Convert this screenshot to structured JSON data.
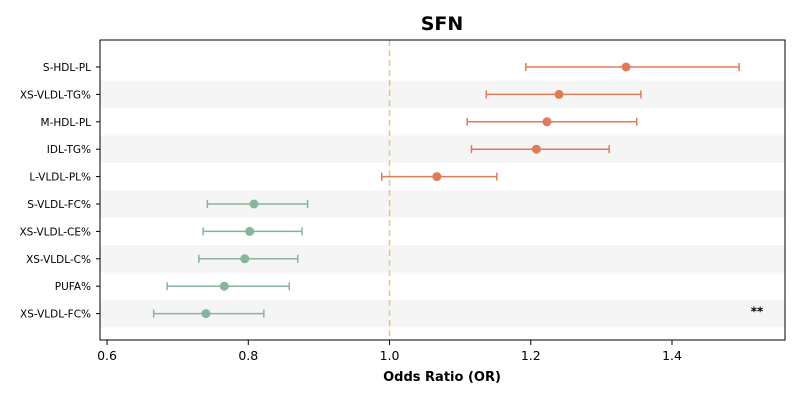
{
  "chart_data": {
    "type": "forest",
    "title": "SFN",
    "xlabel": "Odds Ratio (OR)",
    "xlim": [
      0.59,
      1.56
    ],
    "xticks": [
      0.6,
      0.8,
      1.0,
      1.2,
      1.4
    ],
    "xtick_labels": [
      "0.6",
      "0.8",
      "1.0",
      "1.2",
      "1.4"
    ],
    "reference_line": 1.0,
    "reference_color": "#f2c17a",
    "colors": {
      "increased": "#e07b5a",
      "decreased": "#86b59b",
      "band": "#f5f5f5"
    },
    "rows": [
      {
        "label": "S-HDL-PL",
        "or": 1.335,
        "lower": 1.193,
        "upper": 1.495,
        "group": "increased"
      },
      {
        "label": "XS-VLDL-TG%",
        "or": 1.24,
        "lower": 1.137,
        "upper": 1.356,
        "group": "increased"
      },
      {
        "label": "M-HDL-PL",
        "or": 1.223,
        "lower": 1.11,
        "upper": 1.35,
        "group": "increased"
      },
      {
        "label": "IDL-TG%",
        "or": 1.208,
        "lower": 1.116,
        "upper": 1.311,
        "group": "increased"
      },
      {
        "label": "L-VLDL-PL%",
        "or": 1.067,
        "lower": 0.989,
        "upper": 1.152,
        "group": "increased"
      },
      {
        "label": "S-VLDL-FC%",
        "or": 0.808,
        "lower": 0.742,
        "upper": 0.884,
        "group": "decreased"
      },
      {
        "label": "XS-VLDL-CE%",
        "or": 0.802,
        "lower": 0.736,
        "upper": 0.876,
        "group": "decreased"
      },
      {
        "label": "XS-VLDL-C%",
        "or": 0.795,
        "lower": 0.73,
        "upper": 0.87,
        "group": "decreased"
      },
      {
        "label": "PUFA%",
        "or": 0.766,
        "lower": 0.685,
        "upper": 0.858,
        "group": "decreased"
      },
      {
        "label": "XS-VLDL-FC%",
        "or": 0.74,
        "lower": 0.666,
        "upper": 0.822,
        "group": "decreased"
      }
    ],
    "annotations": [
      {
        "row": 9,
        "text": "**"
      }
    ]
  }
}
